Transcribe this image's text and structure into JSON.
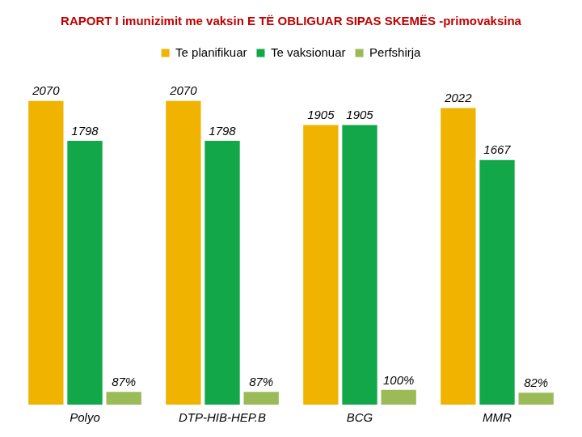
{
  "chart_data": {
    "type": "bar",
    "title": "RAPORT I imunizimit me vaksin E TË OBLIGUAR SIPAS SKEMËS -primovaksina",
    "categories": [
      "Polyo",
      "DTP-HIB-HEP.B",
      "BCG",
      "MMR"
    ],
    "series": [
      {
        "name": "Te planifikuar",
        "color": "#f0b400",
        "values": [
          2070,
          2070,
          1905,
          2022
        ]
      },
      {
        "name": "Te vaksionuar",
        "color": "#12a84a",
        "values": [
          1798,
          1798,
          1905,
          1667
        ]
      },
      {
        "name": "Perfshirja",
        "color": "#9bbb59",
        "values": [
          87,
          87,
          100,
          82
        ],
        "value_labels": [
          "87%",
          "87%",
          "100%",
          "82%"
        ]
      }
    ],
    "ylim": [
      0,
      2300
    ],
    "grid": false,
    "legend": "top",
    "data_labels": true,
    "tick_labels": "x"
  }
}
